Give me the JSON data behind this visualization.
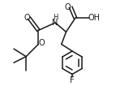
{
  "bg_color": "#ffffff",
  "line_color": "#1a1a1a",
  "line_width": 1.1,
  "font_size": 7.0,
  "fig_width": 1.43,
  "fig_height": 1.06,
  "dpi": 100,
  "xlim": [
    0,
    143
  ],
  "ylim": [
    0,
    106
  ]
}
